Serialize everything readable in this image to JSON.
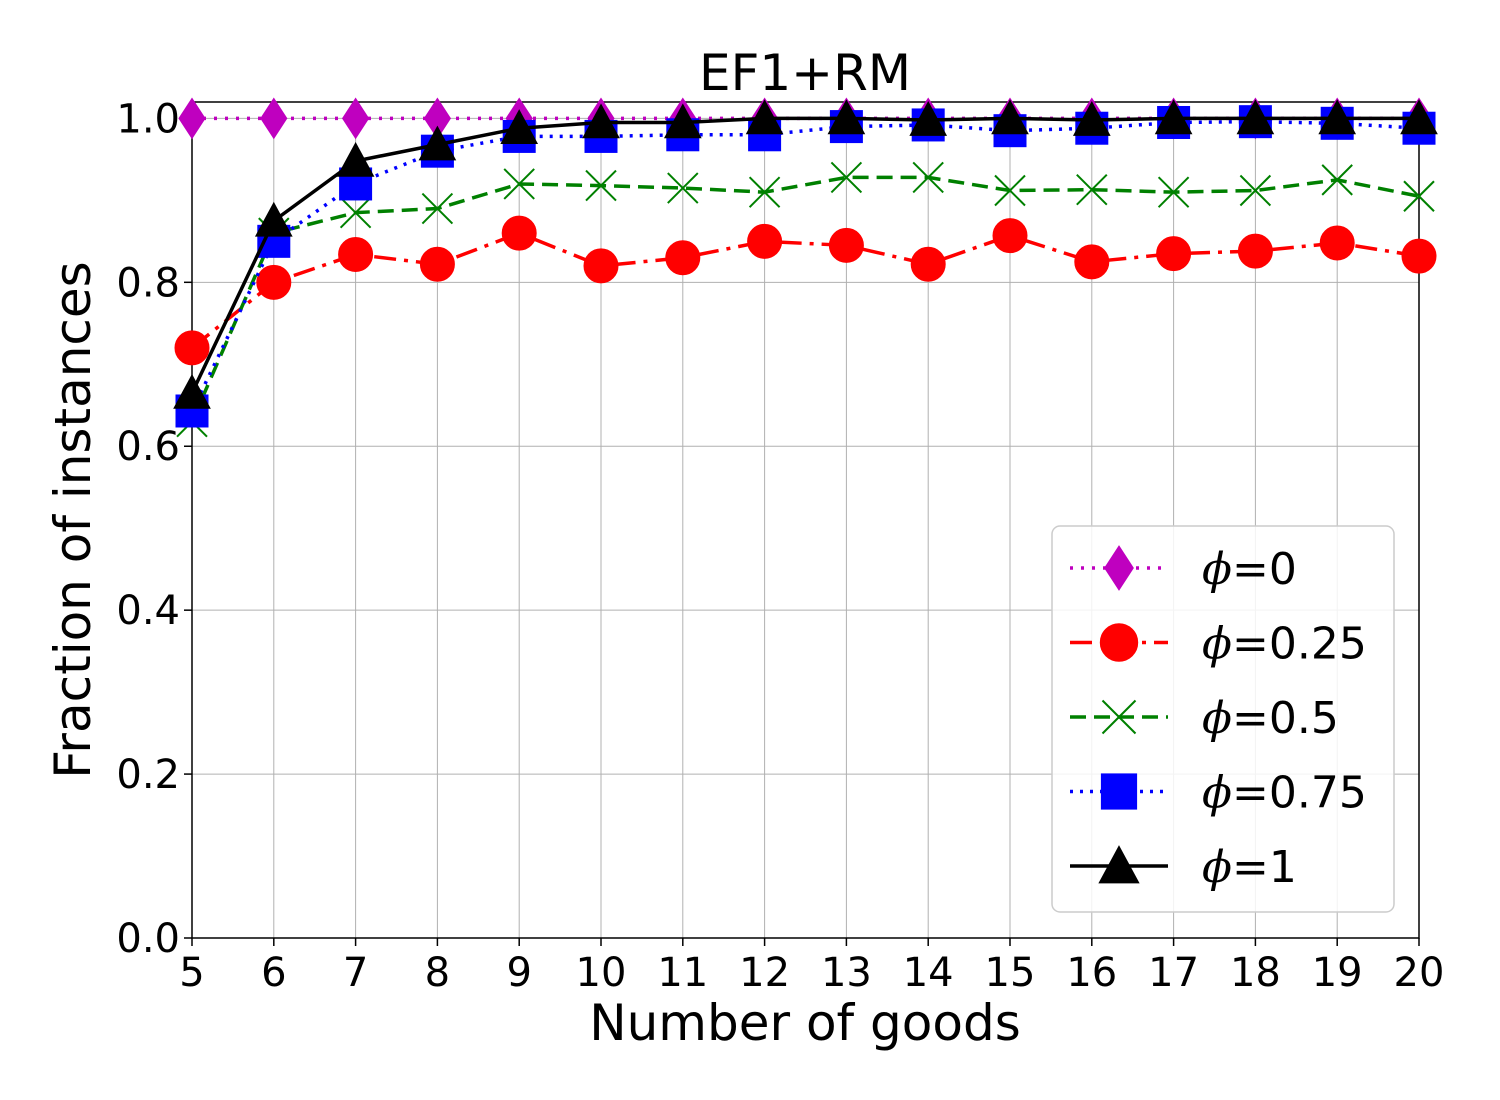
{
  "chart_data": {
    "type": "line",
    "title": "EF1+RM",
    "xlabel": "Number of goods",
    "ylabel": "Fraction of instances",
    "xlim": [
      5,
      20
    ],
    "ylim": [
      0.0,
      1.02
    ],
    "xticks": [
      5,
      6,
      7,
      8,
      9,
      10,
      11,
      12,
      13,
      14,
      15,
      16,
      17,
      18,
      19,
      20
    ],
    "yticks": [
      0.0,
      0.2,
      0.4,
      0.6,
      0.8,
      1.0
    ],
    "ytick_labels": [
      "0.0",
      "0.2",
      "0.4",
      "0.6",
      "0.8",
      "1.0"
    ],
    "grid": true,
    "legend_position": "bottom-right",
    "x": [
      5,
      6,
      7,
      8,
      9,
      10,
      11,
      12,
      13,
      14,
      15,
      16,
      17,
      18,
      19,
      20
    ],
    "series": [
      {
        "name": "ϕ=0",
        "symbol": "ϕ",
        "value_label": "=0",
        "color": "#bf00bf",
        "dash": "3 8",
        "marker": "diamond",
        "values": [
          1.0,
          1.0,
          1.0,
          1.0,
          1.0,
          1.0,
          1.0,
          1.0,
          1.0,
          1.0,
          1.0,
          1.0,
          1.0,
          1.0,
          1.0,
          1.0
        ]
      },
      {
        "name": "ϕ=0.25",
        "symbol": "ϕ",
        "value_label": "=0.25",
        "color": "#ff0000",
        "dash": "22 8 4 8",
        "marker": "circle",
        "values": [
          0.72,
          0.8,
          0.834,
          0.822,
          0.86,
          0.82,
          0.83,
          0.85,
          0.845,
          0.822,
          0.857,
          0.825,
          0.835,
          0.838,
          0.848,
          0.832
        ]
      },
      {
        "name": "ϕ=0.5",
        "symbol": "ϕ",
        "value_label": "=0.5",
        "color": "#008000",
        "dash": "16 8",
        "marker": "x",
        "values": [
          0.63,
          0.86,
          0.885,
          0.89,
          0.92,
          0.918,
          0.915,
          0.91,
          0.928,
          0.928,
          0.912,
          0.913,
          0.91,
          0.912,
          0.925,
          0.905
        ]
      },
      {
        "name": "ϕ=0.75",
        "symbol": "ϕ",
        "value_label": "=0.75",
        "color": "#0000ff",
        "dash": "3 7",
        "marker": "square",
        "values": [
          0.643,
          0.85,
          0.92,
          0.96,
          0.978,
          0.978,
          0.98,
          0.98,
          0.99,
          0.992,
          0.985,
          0.988,
          0.995,
          0.996,
          0.994,
          0.988
        ]
      },
      {
        "name": "ϕ=1",
        "symbol": "ϕ",
        "value_label": "=1",
        "color": "#000000",
        "dash": "",
        "marker": "triangle",
        "values": [
          0.665,
          0.875,
          0.948,
          0.968,
          0.988,
          0.995,
          0.995,
          1.0,
          1.0,
          0.998,
          1.0,
          0.998,
          1.0,
          1.0,
          1.0,
          1.0
        ]
      }
    ]
  }
}
